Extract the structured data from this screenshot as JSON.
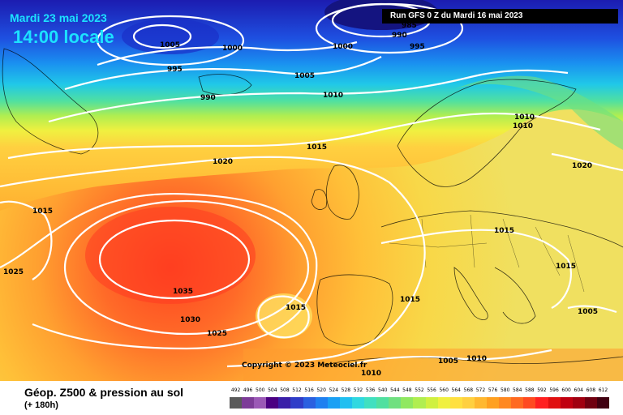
{
  "header": {
    "date": "Mardi 23 mai 2023",
    "time": "14:00 locale",
    "run": "Run GFS 0 Z du Mardi 16 mai 2023"
  },
  "footer": {
    "title": "Géop. Z500 & pression au sol",
    "subtitle": "(+ 180h)",
    "copyright": "Copyright © 2023 Meteociel.fr"
  },
  "colorbar": {
    "ticks": [
      "492",
      "496",
      "500",
      "504",
      "508",
      "512",
      "516",
      "520",
      "524",
      "528",
      "532",
      "536",
      "540",
      "544",
      "548",
      "552",
      "556",
      "560",
      "564",
      "568",
      "572",
      "576",
      "580",
      "584",
      "588",
      "592",
      "596",
      "600",
      "604",
      "608",
      "612"
    ],
    "colors": [
      "#5a5a5a",
      "#7d3c98",
      "#9b59b6",
      "#4b0082",
      "#3a1fa8",
      "#2f3dc8",
      "#2a60e0",
      "#1f80f0",
      "#1aa0f4",
      "#20bff0",
      "#30d8e0",
      "#40e0c0",
      "#50e0a0",
      "#70e080",
      "#90e860",
      "#b0ee50",
      "#d0f040",
      "#f0f040",
      "#ffe040",
      "#ffd040",
      "#ffb830",
      "#ffa020",
      "#ff8820",
      "#ff6a20",
      "#ff4a20",
      "#ff2020",
      "#e01010",
      "#c00010",
      "#a00010",
      "#700010",
      "#400010"
    ]
  },
  "isobars": [
    {
      "text": "1005"
    },
    {
      "text": "1000"
    },
    {
      "text": "995"
    },
    {
      "text": "990"
    },
    {
      "text": "985"
    },
    {
      "text": "990"
    },
    {
      "text": "1000"
    },
    {
      "text": "995"
    },
    {
      "text": "1005"
    },
    {
      "text": "1010"
    },
    {
      "text": "1015"
    },
    {
      "text": "1020"
    },
    {
      "text": "1010"
    },
    {
      "text": "1010"
    },
    {
      "text": "1020"
    },
    {
      "text": "1015"
    },
    {
      "text": "1015"
    },
    {
      "text": "1025"
    },
    {
      "text": "1035"
    },
    {
      "text": "1030"
    },
    {
      "text": "1025"
    },
    {
      "text": "1015"
    },
    {
      "text": "1015"
    },
    {
      "text": "1015"
    },
    {
      "text": "1005"
    },
    {
      "text": "1010"
    },
    {
      "text": "1010"
    },
    {
      "text": "1005"
    }
  ]
}
